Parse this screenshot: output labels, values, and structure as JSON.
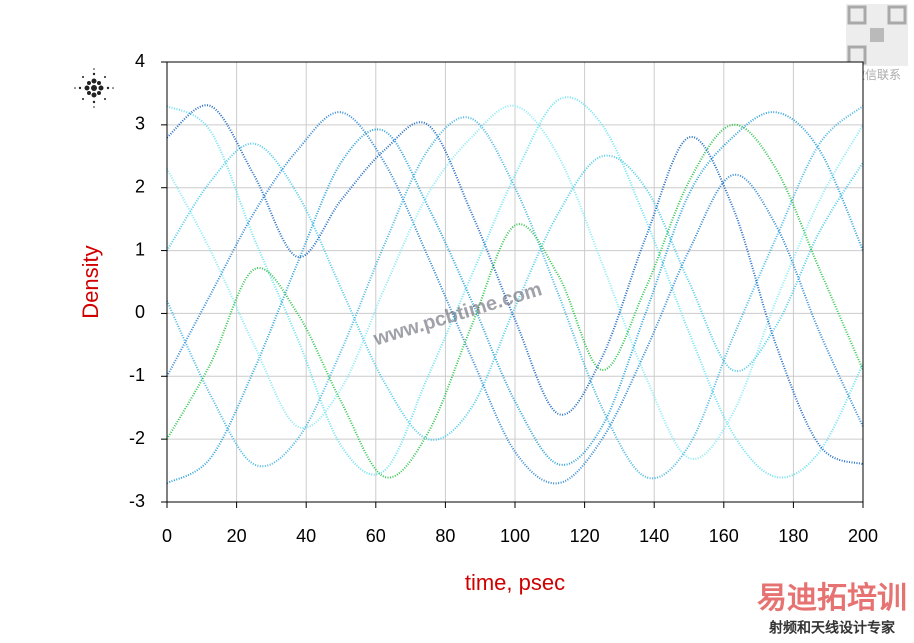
{
  "chart_data": {
    "type": "line",
    "xlabel": "time, psec",
    "ylabel": "Density",
    "x": [
      0,
      12.5,
      25,
      37.5,
      50,
      62.5,
      75,
      87.5,
      100,
      112.5,
      125,
      137.5,
      150,
      162.5,
      175,
      187.5,
      200
    ],
    "series": [
      {
        "color": "#5fe0f0",
        "values": [
          3.3,
          2.9,
          1.2,
          -0.4,
          -2.1,
          -2.5,
          -1.0,
          0.6,
          2.2,
          3.4,
          3.0,
          1.5,
          -0.3,
          -1.9,
          -2.6,
          -2.2,
          -0.8
        ]
      },
      {
        "color": "#1a9bd7",
        "values": [
          -2.7,
          -2.3,
          -0.9,
          0.8,
          2.4,
          2.9,
          1.7,
          0.2,
          -1.4,
          -2.4,
          -1.8,
          0.0,
          1.9,
          2.8,
          3.2,
          2.6,
          1.0
        ]
      },
      {
        "color": "#40c8e8",
        "values": [
          1.0,
          2.1,
          2.7,
          1.9,
          0.4,
          -1.1,
          -2.0,
          -1.5,
          0.1,
          1.6,
          2.5,
          2.0,
          0.5,
          -0.9,
          -0.2,
          1.3,
          2.4
        ]
      },
      {
        "color": "#2080d0",
        "values": [
          -1.0,
          0.3,
          1.6,
          2.6,
          3.2,
          2.4,
          0.9,
          -0.7,
          -2.2,
          -2.7,
          -2.0,
          -0.6,
          1.0,
          2.2,
          1.4,
          -0.3,
          -1.8
        ]
      },
      {
        "color": "#7fe8f5",
        "values": [
          2.3,
          1.0,
          -0.5,
          -1.8,
          -1.2,
          0.4,
          1.9,
          2.8,
          3.3,
          2.5,
          0.8,
          -1.0,
          -2.3,
          -1.6,
          0.2,
          1.8,
          3.0
        ]
      },
      {
        "color": "#3ab0e0",
        "values": [
          0.2,
          -1.3,
          -2.4,
          -2.0,
          -0.6,
          1.1,
          2.6,
          3.1,
          2.0,
          0.3,
          -1.5,
          -2.6,
          -2.1,
          -0.4,
          1.2,
          2.7,
          3.3
        ]
      },
      {
        "color": "#20c040",
        "values": [
          -2.0,
          -0.8,
          0.7,
          0.0,
          -1.4,
          -2.6,
          -1.9,
          -0.2,
          1.4,
          0.6,
          -0.9,
          0.4,
          2.1,
          3.0,
          2.3,
          0.7,
          -0.9
        ]
      },
      {
        "color": "#1060c0",
        "values": [
          2.8,
          3.3,
          2.2,
          0.9,
          1.8,
          2.6,
          3.0,
          1.6,
          -0.1,
          -1.6,
          -0.7,
          1.2,
          2.8,
          1.7,
          -0.5,
          -2.1,
          -2.4
        ]
      }
    ],
    "xlim": [
      0,
      200
    ],
    "xticks": [
      0,
      20,
      40,
      60,
      80,
      100,
      120,
      140,
      160,
      180,
      200
    ],
    "ylim": [
      -3,
      4
    ],
    "yticks": [
      -3,
      -2,
      -1,
      0,
      1,
      2,
      3,
      4
    ],
    "grid": true
  },
  "watermarks": {
    "site": "www.pcbtime.com",
    "qr_caption": "微信联系",
    "brand": "易迪拓培训",
    "slogan": "射频和天线设计专家"
  }
}
